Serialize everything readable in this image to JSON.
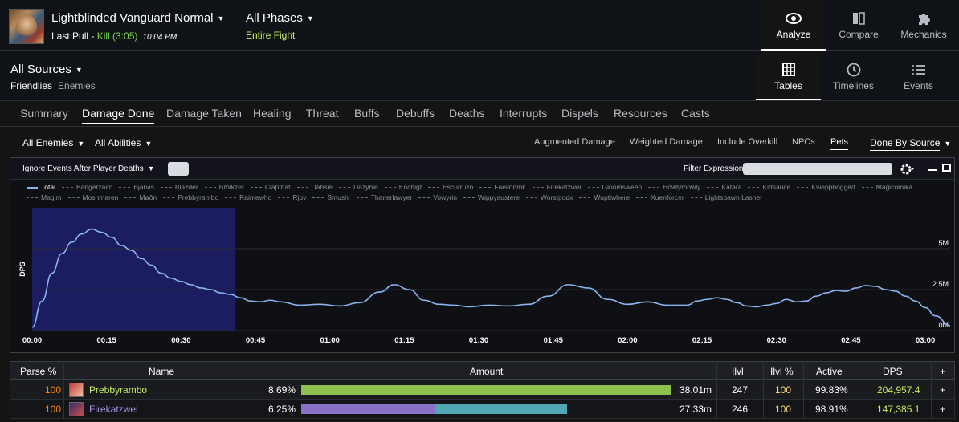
{
  "header": {
    "encounter": "Lightblinded Vanguard Normal",
    "last_pull_label": "Last Pull - ",
    "kill_text": "Kill (3:05)",
    "time": "10:04 PM",
    "phases": "All Phases",
    "phase_sub": "Entire Fight",
    "nav": [
      {
        "label": "Analyze",
        "icon": "eye-icon"
      },
      {
        "label": "Compare",
        "icon": "compare-icon"
      },
      {
        "label": "Mechanics",
        "icon": "puzzle-icon"
      }
    ]
  },
  "sources": {
    "title": "All Sources",
    "tabs": [
      "Friendlies",
      "Enemies"
    ],
    "views": [
      {
        "label": "Tables",
        "icon": "grid-icon"
      },
      {
        "label": "Timelines",
        "icon": "clock-icon"
      },
      {
        "label": "Events",
        "icon": "list-icon"
      }
    ]
  },
  "tabs": [
    "Summary",
    "Damage Done",
    "Damage Taken",
    "Healing",
    "Threat",
    "Buffs",
    "Debuffs",
    "Deaths",
    "Interrupts",
    "Dispels",
    "Resources",
    "Casts"
  ],
  "filters": {
    "enemies": "All Enemies",
    "abilities": "All Abilities",
    "options": [
      "Augmented Damage",
      "Weighted Damage",
      "Include Overkill",
      "NPCs",
      "Pets"
    ],
    "done_by": "Done By Source"
  },
  "graph": {
    "ignore_label": "Ignore Events After Player Deaths",
    "filter_label": "Filter Expression:",
    "legend": [
      "Total",
      "Bangerzaim",
      "Bjärvis",
      "Blazder",
      "Brolkzer",
      "Clapthat",
      "Dabsie",
      "Dazyblé",
      "Enchigf",
      "Escurruzo",
      "Faelionmk",
      "Firekatzwei",
      "Gloomsweep",
      "Höwlymöwly",
      "Katärä",
      "Kidsauce",
      "Kweppbogged",
      "Magicomika",
      "Magim",
      "Moshmaren",
      "Møðn",
      "Prebbyrambo",
      "Raimewho",
      "Rjbv",
      "Smushi",
      "Thanerlawyer",
      "Vowyrin",
      "Wippyaustere",
      "Worstgodx",
      "Wuptiwhere",
      "Xuenforcer",
      "Lightspawn Lasher"
    ]
  },
  "chart_data": {
    "type": "line",
    "ylabel": "DPS",
    "yticks": [
      "0M",
      "2.5M",
      "5M"
    ],
    "xticks": [
      "00:00",
      "00:15",
      "00:30",
      "00:45",
      "01:00",
      "01:15",
      "01:30",
      "01:45",
      "02:00",
      "02:15",
      "02:30",
      "02:45",
      "03:00"
    ],
    "ylim": [
      0,
      7.5
    ],
    "xlim": [
      0,
      185
    ],
    "selection_seconds": [
      0,
      41
    ],
    "color": "#8ab4f0",
    "selection_color": "#1e1e6e",
    "series": [
      {
        "name": "Total",
        "x": [
          0,
          2,
          4,
          6,
          8,
          10,
          12,
          14,
          16,
          18,
          20,
          22,
          24,
          26,
          28,
          30,
          32,
          34,
          36,
          38,
          40,
          42,
          44,
          46,
          48,
          50,
          54,
          58,
          62,
          66,
          70,
          73,
          76,
          79,
          82,
          85,
          88,
          92,
          96,
          100,
          104,
          108,
          112,
          116,
          120,
          124,
          128,
          132,
          134,
          136,
          138,
          140,
          142,
          144,
          146,
          148,
          150,
          152,
          154,
          156,
          158,
          160,
          162,
          164,
          166,
          168,
          170,
          172,
          174,
          176,
          178,
          180,
          182,
          185
        ],
        "y": [
          0.2,
          1.8,
          3.5,
          4.7,
          5.4,
          5.9,
          6.2,
          6.0,
          5.7,
          5.2,
          4.9,
          4.4,
          4.0,
          3.5,
          3.2,
          3.0,
          2.8,
          2.6,
          2.5,
          2.3,
          2.2,
          2.0,
          1.8,
          1.75,
          1.85,
          1.75,
          1.55,
          1.6,
          1.5,
          1.7,
          2.35,
          2.8,
          2.5,
          1.85,
          1.6,
          1.55,
          1.45,
          1.55,
          1.5,
          1.6,
          2.1,
          2.8,
          2.6,
          1.9,
          1.6,
          1.75,
          1.55,
          1.55,
          1.8,
          1.9,
          2.0,
          1.9,
          1.7,
          1.5,
          1.45,
          1.55,
          1.65,
          1.9,
          1.75,
          1.8,
          2.1,
          2.3,
          2.45,
          2.4,
          2.6,
          2.75,
          2.7,
          2.5,
          2.4,
          2.1,
          1.8,
          1.4,
          0.9,
          0.3
        ]
      }
    ]
  },
  "table": {
    "headers": [
      "Parse %",
      "Name",
      "Amount",
      "Ilvl",
      "Ilvl %",
      "Active",
      "DPS",
      "+"
    ],
    "rows": [
      {
        "parse": "100",
        "name": "Prebbyrambo",
        "name_color": "#c7f05a",
        "pct": "8.69%",
        "bar": 1.0,
        "bar_colors": [
          "#8dc04f"
        ],
        "amount": "38.01m",
        "ilvl": "247",
        "ilvlp": "100",
        "active": "99.83%",
        "dps": "204,957.4",
        "plus": "+"
      },
      {
        "parse": "100",
        "name": "Firekatzwei",
        "name_color": "#a690e0",
        "pct": "6.25%",
        "bar": 0.72,
        "bar_colors": [
          "#8a72c8",
          "#4fa8b4"
        ],
        "amount": "27.33m",
        "ilvl": "246",
        "ilvlp": "100",
        "active": "98.91%",
        "dps": "147,385.1",
        "plus": "+"
      }
    ]
  }
}
